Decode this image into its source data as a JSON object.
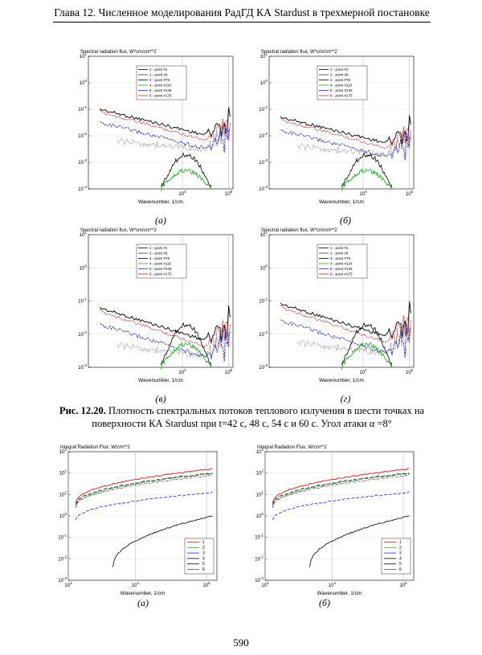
{
  "header": "Глава 12. Численное моделирования РадГД КА Stardust в трехмерной постановке",
  "colors": {
    "p1": "#000000",
    "p2": "#3a3a3a",
    "p3": "#000000",
    "p4": "#22aa22",
    "p5": "#2222dd",
    "p6": "#cc2222",
    "i1": "#cc2222",
    "i2": "#22aa22",
    "i3": "#2222dd",
    "i4": "#000000",
    "i5": "#000000",
    "i6": "#555555"
  },
  "spectral_panels": [
    {
      "subcaption": "(а)",
      "title": "Spectral radiation flux, W*cm/cm**2",
      "xlabel": "Wavenumber, 1/cm",
      "yticks": [
        "10",
        "10",
        "10",
        "10",
        "10",
        "10"
      ],
      "yexp": [
        "1",
        "0",
        "-1",
        "-2",
        "-3",
        "-4"
      ],
      "xticks": [
        "10",
        "10"
      ],
      "xexp": [
        "4",
        "5"
      ],
      "legend": [
        "1 - point #1",
        "2 - point #6",
        "3 - point #75",
        "4 - point #110",
        "5 - point #145",
        "6 - point #175"
      ]
    },
    {
      "subcaption": "(б)",
      "title": "Spectral radiation flux, W*cm/cm**2",
      "xlabel": "Wavenumber, 1/cm",
      "yticks": [
        "10",
        "10",
        "10",
        "10",
        "10",
        "10"
      ],
      "yexp": [
        "1",
        "0",
        "-1",
        "-2",
        "-3",
        "-4"
      ],
      "xticks": [
        "10",
        "10"
      ],
      "xexp": [
        "4",
        "5"
      ],
      "legend": [
        "1 - point #1",
        "2 - point #6",
        "3 - point #75",
        "4 - point #110",
        "5 - point #145",
        "6 - point #175"
      ]
    },
    {
      "subcaption": "(в)",
      "title": "Spectral radiation flux, W*cm/cm**2",
      "xlabel": "Wavenumber, 1/cm",
      "yticks": [
        "10",
        "10",
        "10",
        "10",
        "10"
      ],
      "yexp": [
        "1",
        "0",
        "-1",
        "-2",
        "-3"
      ],
      "xticks": [
        "10",
        "10"
      ],
      "xexp": [
        "4",
        "5"
      ],
      "legend": [
        "1 - point #1",
        "2 - point #6",
        "3 - point #75",
        "4 - point #110",
        "5 - point #145",
        "6 - point #175"
      ]
    },
    {
      "subcaption": "(г)",
      "title": "Spectral radiation flux, W*cm/cm**2",
      "xlabel": "Wavenumber, 1/cm",
      "yticks": [
        "10",
        "10",
        "10",
        "10",
        "10"
      ],
      "yexp": [
        "1",
        "0",
        "-1",
        "-2",
        "-3"
      ],
      "xticks": [
        "10",
        "10"
      ],
      "xexp": [
        "4",
        "5"
      ],
      "legend": [
        "1 - point #1",
        "2 - point #6",
        "3 - point #75",
        "4 - point #110",
        "5 - point #145",
        "6 - point #175"
      ]
    }
  ],
  "caption": {
    "label": "Рис. 12.20.",
    "text": " Плотность спектральных потоков теплового излучения в шести точках на поверхности КА Stardust при t=42 с, 48 с, 54 с и 60 с. Угол атаки α =8°"
  },
  "integral_panels": [
    {
      "subcaption": "(а)",
      "title": "Integral Radiation Flux, W/cm**2",
      "xlabel": "Wavenumber, 1/cm",
      "yticks": [
        "10",
        "10",
        "10",
        "10",
        "10",
        "10",
        "10"
      ],
      "yexp": [
        "3",
        "2",
        "1",
        "0",
        "-1",
        "-2",
        "-3"
      ],
      "xticks": [
        "10",
        "10",
        "10"
      ],
      "xexp": [
        "3",
        "4",
        "5"
      ],
      "legend": [
        "1",
        "2",
        "3",
        "4",
        "5",
        "6"
      ]
    },
    {
      "subcaption": "(б)",
      "title": "Integral Radiation Flux, W/cm**2",
      "xlabel": "Wavenumber, 1/cm",
      "yticks": [
        "10",
        "10",
        "10",
        "10",
        "10",
        "10",
        "10"
      ],
      "yexp": [
        "3",
        "2",
        "1",
        "0",
        "-1",
        "-2",
        "-3"
      ],
      "xticks": [
        "10",
        "10",
        "10"
      ],
      "xexp": [
        "3",
        "4",
        "5"
      ],
      "legend": [
        "1",
        "2",
        "3",
        "4",
        "5",
        "6"
      ]
    }
  ],
  "page_number": "590"
}
